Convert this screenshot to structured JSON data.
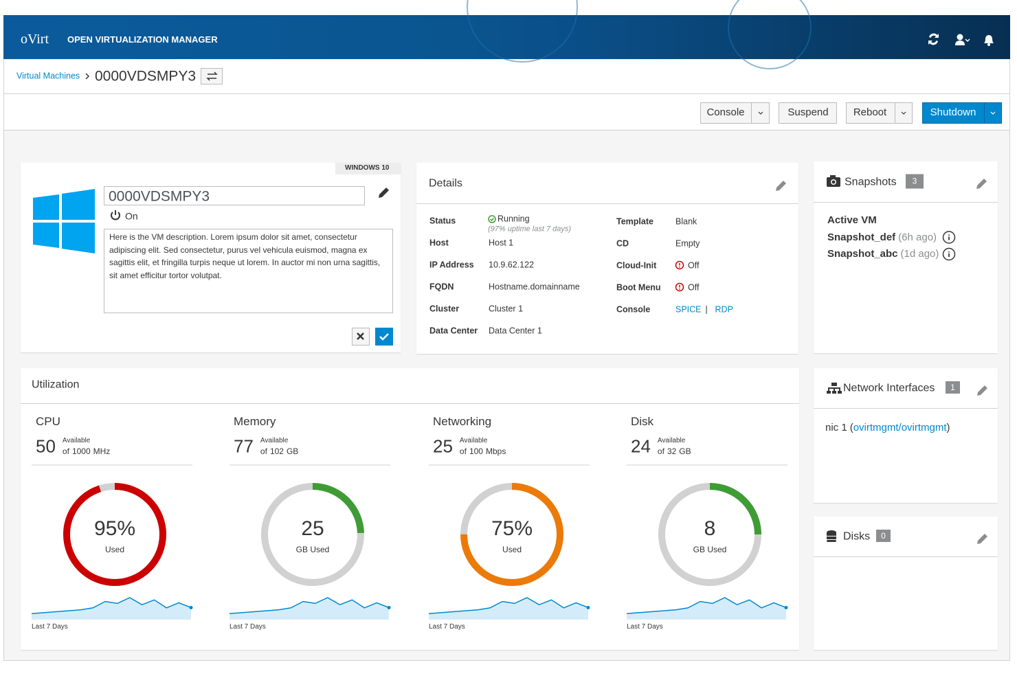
{
  "header": {
    "brand": "oVirt",
    "product": "OPEN VIRTUALIZATION MANAGER"
  },
  "breadcrumb": {
    "parent": "Virtual Machines",
    "current": "0000VDSMPY3"
  },
  "toolbar": {
    "buttons": [
      "Console",
      "Suspend",
      "Reboot",
      "Shutdown"
    ]
  },
  "vm": {
    "os_badge": "WINDOWS 10",
    "name": "0000VDSMPY3",
    "power": "On",
    "description": "Here is the VM description. Lorem ipsum dolor sit amet, consectetur adipiscing elit. Sed consectetur, purus vel vehicula euismod, magna ex sagittis elit, et fringilla turpis neque ut lorem. In auctor mi non urna sagittis, sit amet efficitur tortor volutpat."
  },
  "details": {
    "title": "Details",
    "left": [
      {
        "label": "Status",
        "value": "Running",
        "note": "(97% uptime last 7 days)"
      },
      {
        "label": "Host",
        "value": "Host 1"
      },
      {
        "label": "IP Address",
        "value": "10.9.62.122"
      },
      {
        "label": "FQDN",
        "value": "Hostname.domainname"
      },
      {
        "label": "Cluster",
        "value": "Cluster 1"
      },
      {
        "label": "Data Center",
        "value": "Data Center 1"
      }
    ],
    "right": [
      {
        "label": "Template",
        "value": "Blank"
      },
      {
        "label": "CD",
        "value": "Empty"
      },
      {
        "label": "Cloud-Init",
        "value": "Off"
      },
      {
        "label": "Boot Menu",
        "value": "Off"
      },
      {
        "label": "Console",
        "links": [
          "SPICE",
          "RDP"
        ],
        "separator": "|"
      }
    ]
  },
  "snapshots": {
    "title": "Snapshots",
    "count": 3,
    "items": [
      {
        "name": "Active VM"
      },
      {
        "name": "Snapshot_def",
        "age": "(6h ago)"
      },
      {
        "name": "Snapshot_abc",
        "age": "(1d ago)"
      }
    ]
  },
  "network": {
    "title": "Network Interfaces",
    "count": 1,
    "brackets": [
      "(",
      ")"
    ],
    "items": [
      {
        "name": "nic 1",
        "network": "ovirtmgmt/ovirtmgmt"
      }
    ]
  },
  "disks": {
    "title": "Disks",
    "count": 0
  },
  "utilization": {
    "title": "Utilization",
    "metrics": [
      {
        "name": "CPU",
        "available": 50,
        "available_caption": "Available",
        "of": "of",
        "total": 1000,
        "unit": "MHz",
        "used_label": "95%",
        "used_caption": "Used",
        "color": "#cc0000",
        "period": "Last 7 Days",
        "trend": [
          1,
          1.3,
          1.6,
          1.9,
          2.2,
          2.8,
          4.8,
          4.2,
          6,
          3.8,
          5.3,
          2.8,
          4.4,
          2.9
        ]
      },
      {
        "name": "Memory",
        "available": 77,
        "available_caption": "Available",
        "of": "of",
        "total": 102,
        "unit": "GB",
        "used": 25,
        "used_caption": "GB Used",
        "color": "#3f9c35",
        "period": "Last 7 Days",
        "trend": [
          1,
          1.3,
          1.6,
          1.9,
          2.2,
          2.8,
          4.8,
          4.2,
          6,
          3.8,
          5.3,
          2.8,
          4.4,
          2.9
        ]
      },
      {
        "name": "Networking",
        "available": 25,
        "available_caption": "Available",
        "of": "of",
        "total": 100,
        "unit": "Mbps",
        "used_label": "75%",
        "used_caption": "Used",
        "color": "#ec7a08",
        "period": "Last 7 Days",
        "trend": [
          1,
          1.3,
          1.6,
          1.9,
          2.2,
          2.8,
          4.8,
          4.2,
          6,
          3.8,
          5.3,
          2.8,
          4.4,
          2.9
        ]
      },
      {
        "name": "Disk",
        "available": 24,
        "available_caption": "Available",
        "of": "of",
        "total": 32,
        "unit": "GB",
        "used": 8,
        "used_caption": "GB Used",
        "color": "#3f9c35",
        "period": "Last 7 Days",
        "trend": [
          1,
          1.3,
          1.6,
          1.9,
          2.2,
          2.8,
          4.8,
          4.2,
          6,
          3.8,
          5.3,
          2.8,
          4.4,
          2.9
        ]
      }
    ]
  }
}
